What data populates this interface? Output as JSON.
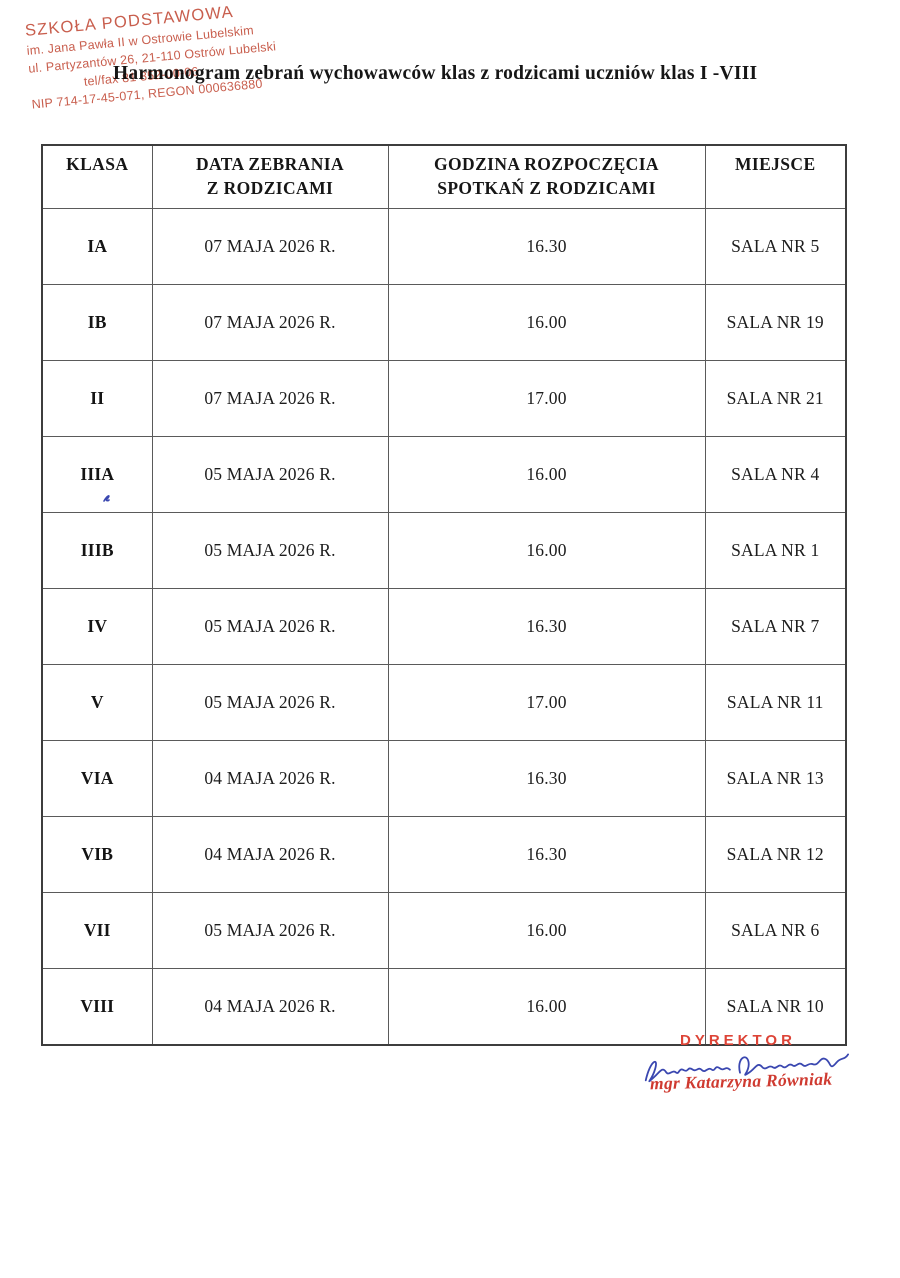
{
  "stamp": {
    "color": "#c4503e",
    "lines": [
      "SZKOŁA PODSTAWOWA",
      "im. Jana Pawła II w Ostrowie Lubelskim",
      "ul. Partyzantów 26, 21-110 Ostrów Lubelski",
      "tel/fax 81 852-00-06",
      "NIP 714-17-45-071, REGON 000636880"
    ]
  },
  "title": "Harmonogram zebrań wychowawców klas z rodzicami uczniów klas I -VIII",
  "table": {
    "headers": [
      {
        "l1": "KLASA",
        "l2": ""
      },
      {
        "l1": "DATA ZEBRANIA",
        "l2": "Z RODZICAMI"
      },
      {
        "l1": "GODZINA ROZPOCZĘCIA",
        "l2": "SPOTKAŃ Z RODZICAMI"
      },
      {
        "l1": "MIEJSCE",
        "l2": ""
      }
    ],
    "rows": [
      {
        "klasa": "IA",
        "data_zebrania": "07 MAJA 2026 R.",
        "godzina": "16.30",
        "miejsce": "SALA NR 5"
      },
      {
        "klasa": "IB",
        "data_zebrania": "07 MAJA 2026 R.",
        "godzina": "16.00",
        "miejsce": "SALA NR 19"
      },
      {
        "klasa": "II",
        "data_zebrania": "07 MAJA 2026 R.",
        "godzina": "17.00",
        "miejsce": "SALA NR 21"
      },
      {
        "klasa": "IIIA",
        "data_zebrania": "05 MAJA 2026 R.",
        "godzina": "16.00",
        "miejsce": "SALA NR 4"
      },
      {
        "klasa": "IIIB",
        "data_zebrania": "05 MAJA 2026 R.",
        "godzina": "16.00",
        "miejsce": "SALA NR 1"
      },
      {
        "klasa": "IV",
        "data_zebrania": "05 MAJA 2026 R.",
        "godzina": "16.30",
        "miejsce": "SALA NR 7"
      },
      {
        "klasa": "V",
        "data_zebrania": "05 MAJA 2026 R.",
        "godzina": "17.00",
        "miejsce": "SALA NR 11"
      },
      {
        "klasa": "VIA",
        "data_zebrania": "04 MAJA 2026 R.",
        "godzina": "16.30",
        "miejsce": "SALA NR 13"
      },
      {
        "klasa": "VIB",
        "data_zebrania": "04 MAJA 2026 R.",
        "godzina": "16.30",
        "miejsce": "SALA NR 12"
      },
      {
        "klasa": "VII",
        "data_zebrania": "05 MAJA 2026 R.",
        "godzina": "16.00",
        "miejsce": "SALA NR 6"
      },
      {
        "klasa": "VIII",
        "data_zebrania": "04 MAJA 2026 R.",
        "godzina": "16.00",
        "miejsce": "SALA NR 10"
      }
    ]
  },
  "signature": {
    "role": "DYREKTOR",
    "role_color": "#dd4437",
    "name": "mgr Katarzyna Równiak",
    "name_color": "#cf3a30",
    "ink_color": "#3a47b0"
  }
}
